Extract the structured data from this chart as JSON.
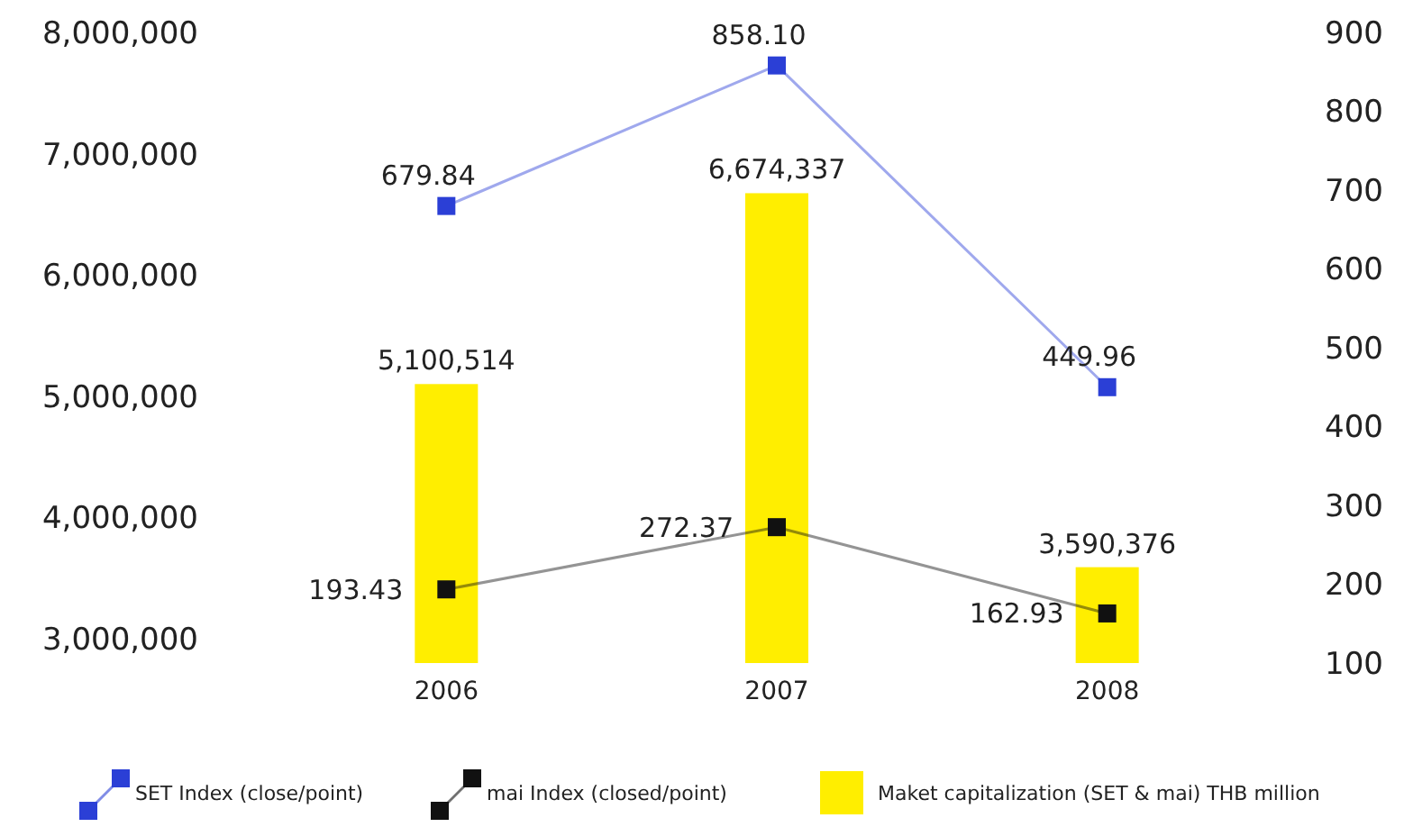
{
  "chart_data": {
    "type": "bar",
    "categories": [
      "2006",
      "2007",
      "2008"
    ],
    "series": [
      {
        "name": "Maket capitalization (SET & mai) THB million",
        "color": "#ffee00",
        "values": [
          5100514,
          6674337,
          3590376
        ],
        "value_labels": [
          "5,100,514",
          "6,674,337",
          "3,590,376"
        ]
      },
      {
        "name": "SET Index (close/point)",
        "type": "line",
        "axis": "y2",
        "color": "#2b3fd6",
        "values": [
          679.84,
          858.1,
          449.96
        ],
        "value_labels": [
          "679.84",
          "858.10",
          "449.96"
        ]
      },
      {
        "name": "mai Index (closed/point)",
        "type": "line",
        "axis": "y2",
        "color": "#111111",
        "values": [
          193.43,
          272.37,
          162.93
        ],
        "value_labels": [
          "193.43",
          "272.37",
          "162.93"
        ]
      }
    ],
    "ylim": [
      2800000,
      8000000
    ],
    "yticks": [
      {
        "value": 3000000,
        "label": "3,000,000"
      },
      {
        "value": 4000000,
        "label": "4,000,000"
      },
      {
        "value": 5000000,
        "label": "5,000,000"
      },
      {
        "value": 6000000,
        "label": "6,000,000"
      },
      {
        "value": 7000000,
        "label": "7,000,000"
      },
      {
        "value": 8000000,
        "label": "8,000,000"
      }
    ],
    "y2lim": [
      100,
      900
    ],
    "y2ticks": [
      100,
      200,
      300,
      400,
      500,
      600,
      700,
      800,
      900
    ],
    "marker": "square",
    "legend": "bottom",
    "grid": false
  }
}
